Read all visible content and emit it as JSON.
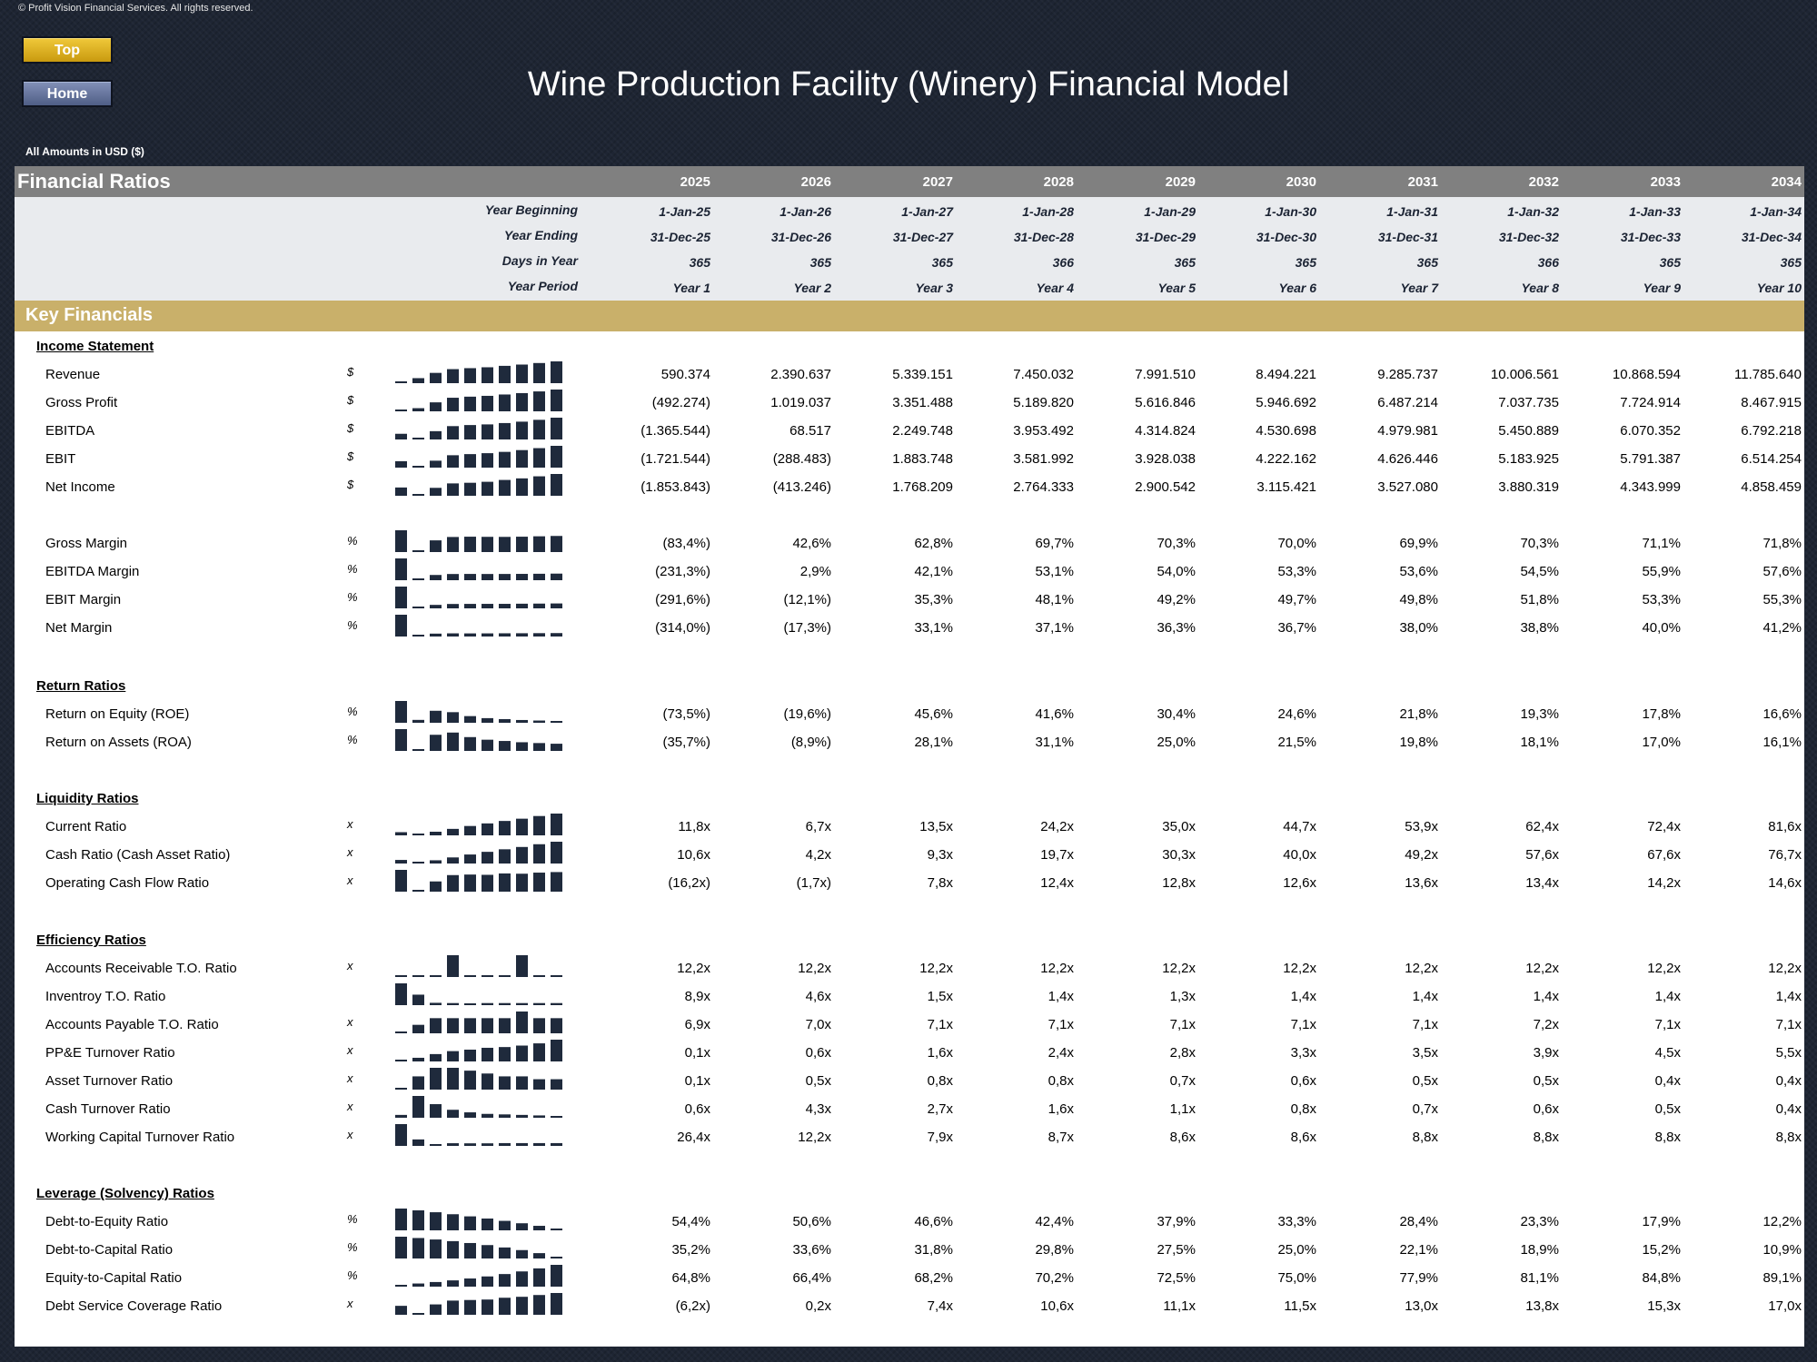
{
  "copyright": "© Profit Vision Financial Services. All rights reserved.",
  "buttons": {
    "top": "Top",
    "home": "Home"
  },
  "title": "Wine Production Facility (Winery) Financial Model",
  "amounts_note": "All Amounts in  USD ($)",
  "sheet_title": "Financial Ratios",
  "years": [
    "2025",
    "2026",
    "2027",
    "2028",
    "2029",
    "2030",
    "2031",
    "2032",
    "2033",
    "2034"
  ],
  "meta": [
    {
      "label": "Year Beginning",
      "values": [
        "1-Jan-25",
        "1-Jan-26",
        "1-Jan-27",
        "1-Jan-28",
        "1-Jan-29",
        "1-Jan-30",
        "1-Jan-31",
        "1-Jan-32",
        "1-Jan-33",
        "1-Jan-34"
      ]
    },
    {
      "label": "Year Ending",
      "values": [
        "31-Dec-25",
        "31-Dec-26",
        "31-Dec-27",
        "31-Dec-28",
        "31-Dec-29",
        "31-Dec-30",
        "31-Dec-31",
        "31-Dec-32",
        "31-Dec-33",
        "31-Dec-34"
      ]
    },
    {
      "label": "Days in Year",
      "values": [
        "365",
        "365",
        "365",
        "366",
        "365",
        "365",
        "365",
        "366",
        "365",
        "365"
      ]
    },
    {
      "label": "Year Period",
      "values": [
        "Year 1",
        "Year 2",
        "Year 3",
        "Year 4",
        "Year 5",
        "Year 6",
        "Year 7",
        "Year 8",
        "Year 9",
        "Year 10"
      ]
    }
  ],
  "key_financials_title": "Key Financials",
  "sections": [
    {
      "title": "Income Statement",
      "rows": [
        {
          "label": "Revenue",
          "unit": "$",
          "values": [
            "590.374",
            "2.390.637",
            "5.339.151",
            "7.450.032",
            "7.991.510",
            "8.494.221",
            "9.285.737",
            "10.006.561",
            "10.868.594",
            "11.785.640"
          ],
          "spark": [
            0.59,
            2.39,
            5.34,
            7.45,
            7.99,
            8.49,
            9.29,
            10.01,
            10.87,
            11.79
          ]
        },
        {
          "label": "Gross Profit",
          "unit": "$",
          "values": [
            "(492.274)",
            "1.019.037",
            "3.351.488",
            "5.189.820",
            "5.616.846",
            "5.946.692",
            "6.487.214",
            "7.037.735",
            "7.724.914",
            "8.467.915"
          ],
          "spark": [
            -0.49,
            1.02,
            3.35,
            5.19,
            5.62,
            5.95,
            6.49,
            7.04,
            7.72,
            8.47
          ]
        },
        {
          "label": "EBITDA",
          "unit": "$",
          "values": [
            "(1.365.544)",
            "68.517",
            "2.249.748",
            "3.953.492",
            "4.314.824",
            "4.530.698",
            "4.979.981",
            "5.450.889",
            "6.070.352",
            "6.792.218"
          ],
          "spark": [
            -1.37,
            0.07,
            2.25,
            3.95,
            4.31,
            4.53,
            4.98,
            5.45,
            6.07,
            6.79
          ]
        },
        {
          "label": "EBIT",
          "unit": "$",
          "values": [
            "(1.721.544)",
            "(288.483)",
            "1.883.748",
            "3.581.992",
            "3.928.038",
            "4.222.162",
            "4.626.446",
            "5.183.925",
            "5.791.387",
            "6.514.254"
          ],
          "spark": [
            -1.72,
            -0.29,
            1.88,
            3.58,
            3.93,
            4.22,
            4.63,
            5.18,
            5.79,
            6.51
          ]
        },
        {
          "label": "Net Income",
          "unit": "$",
          "values": [
            "(1.853.843)",
            "(413.246)",
            "1.768.209",
            "2.764.333",
            "2.900.542",
            "3.115.421",
            "3.527.080",
            "3.880.319",
            "4.343.999",
            "4.858.459"
          ],
          "spark": [
            -1.85,
            -0.41,
            1.77,
            2.76,
            2.9,
            3.12,
            3.53,
            3.88,
            4.34,
            4.86
          ]
        },
        {
          "label": "",
          "unit": "",
          "values": [],
          "spark": []
        },
        {
          "label": "Gross Margin",
          "unit": "%",
          "values": [
            "(83,4%)",
            "42,6%",
            "62,8%",
            "69,7%",
            "70,3%",
            "70,0%",
            "69,9%",
            "70,3%",
            "71,1%",
            "71,8%"
          ],
          "spark": [
            -83.4,
            42.6,
            62.8,
            69.7,
            70.3,
            70.0,
            69.9,
            70.3,
            71.1,
            71.8
          ]
        },
        {
          "label": "EBITDA Margin",
          "unit": "%",
          "values": [
            "(231,3%)",
            "2,9%",
            "42,1%",
            "53,1%",
            "54,0%",
            "53,3%",
            "53,6%",
            "54,5%",
            "55,9%",
            "57,6%"
          ],
          "spark": [
            -231.3,
            2.9,
            42.1,
            53.1,
            54.0,
            53.3,
            53.6,
            54.5,
            55.9,
            57.6
          ]
        },
        {
          "label": "EBIT Margin",
          "unit": "%",
          "values": [
            "(291,6%)",
            "(12,1%)",
            "35,3%",
            "48,1%",
            "49,2%",
            "49,7%",
            "49,8%",
            "51,8%",
            "53,3%",
            "55,3%"
          ],
          "spark": [
            -291.6,
            -12.1,
            35.3,
            48.1,
            49.2,
            49.7,
            49.8,
            51.8,
            53.3,
            55.3
          ]
        },
        {
          "label": "Net Margin",
          "unit": "%",
          "values": [
            "(314,0%)",
            "(17,3%)",
            "33,1%",
            "37,1%",
            "36,3%",
            "36,7%",
            "38,0%",
            "38,8%",
            "40,0%",
            "41,2%"
          ],
          "spark": [
            -314.0,
            -17.3,
            33.1,
            37.1,
            36.3,
            36.7,
            38.0,
            38.8,
            40.0,
            41.2
          ]
        }
      ]
    },
    {
      "title": "Return Ratios",
      "rows": [
        {
          "label": "Return on Equity (ROE)",
          "unit": "%",
          "values": [
            "(73,5%)",
            "(19,6%)",
            "45,6%",
            "41,6%",
            "30,4%",
            "24,6%",
            "21,8%",
            "19,3%",
            "17,8%",
            "16,6%"
          ],
          "spark": [
            -73.5,
            -19.6,
            45.6,
            41.6,
            30.4,
            24.6,
            21.8,
            19.3,
            17.8,
            16.6
          ]
        },
        {
          "label": "Return on Assets (ROA)",
          "unit": "%",
          "values": [
            "(35,7%)",
            "(8,9%)",
            "28,1%",
            "31,1%",
            "25,0%",
            "21,5%",
            "19,8%",
            "18,1%",
            "17,0%",
            "16,1%"
          ],
          "spark": [
            -35.7,
            -8.9,
            28.1,
            31.1,
            25.0,
            21.5,
            19.8,
            18.1,
            17.0,
            16.1
          ]
        }
      ]
    },
    {
      "title": "Liquidity Ratios",
      "rows": [
        {
          "label": "Current Ratio",
          "unit": "x",
          "values": [
            "11,8x",
            "6,7x",
            "13,5x",
            "24,2x",
            "35,0x",
            "44,7x",
            "53,9x",
            "62,4x",
            "72,4x",
            "81,6x"
          ],
          "spark": [
            11.8,
            6.7,
            13.5,
            24.2,
            35.0,
            44.7,
            53.9,
            62.4,
            72.4,
            81.6
          ]
        },
        {
          "label": "Cash Ratio (Cash Asset Ratio)",
          "unit": "x",
          "values": [
            "10,6x",
            "4,2x",
            "9,3x",
            "19,7x",
            "30,3x",
            "40,0x",
            "49,2x",
            "57,6x",
            "67,6x",
            "76,7x"
          ],
          "spark": [
            10.6,
            4.2,
            9.3,
            19.7,
            30.3,
            40.0,
            49.2,
            57.6,
            67.6,
            76.7
          ]
        },
        {
          "label": "Operating Cash Flow Ratio",
          "unit": "x",
          "values": [
            "(16,2x)",
            "(1,7x)",
            "7,8x",
            "12,4x",
            "12,8x",
            "12,6x",
            "13,6x",
            "13,4x",
            "14,2x",
            "14,6x"
          ],
          "spark": [
            -16.2,
            -1.7,
            7.8,
            12.4,
            12.8,
            12.6,
            13.6,
            13.4,
            14.2,
            14.6
          ]
        }
      ]
    },
    {
      "title": "Efficiency Ratios",
      "rows": [
        {
          "label": "Accounts Receivable T.O. Ratio",
          "unit": "x",
          "values": [
            "12,2x",
            "12,2x",
            "12,2x",
            "12,2x",
            "12,2x",
            "12,2x",
            "12,2x",
            "12,2x",
            "12,2x",
            "12,2x"
          ],
          "spark": [
            12.2,
            12.2,
            12.2,
            12.25,
            12.2,
            12.2,
            12.2,
            12.25,
            12.2,
            12.2
          ]
        },
        {
          "label": "Inventroy T.O. Ratio",
          "unit": "",
          "values": [
            "8,9x",
            "4,6x",
            "1,5x",
            "1,4x",
            "1,3x",
            "1,4x",
            "1,4x",
            "1,4x",
            "1,4x",
            "1,4x"
          ],
          "spark": [
            8.9,
            4.6,
            1.5,
            1.4,
            1.3,
            1.4,
            1.4,
            1.4,
            1.4,
            1.4
          ]
        },
        {
          "label": "Accounts Payable T.O. Ratio",
          "unit": "x",
          "values": [
            "6,9x",
            "7,0x",
            "7,1x",
            "7,1x",
            "7,1x",
            "7,1x",
            "7,1x",
            "7,2x",
            "7,1x",
            "7,1x"
          ],
          "spark": [
            6.9,
            7.0,
            7.1,
            7.1,
            7.1,
            7.1,
            7.1,
            7.2,
            7.1,
            7.1
          ]
        },
        {
          "label": "PP&E Turnover Ratio",
          "unit": "x",
          "values": [
            "0,1x",
            "0,6x",
            "1,6x",
            "2,4x",
            "2,8x",
            "3,3x",
            "3,5x",
            "3,9x",
            "4,5x",
            "5,5x"
          ],
          "spark": [
            0.1,
            0.6,
            1.6,
            2.4,
            2.8,
            3.3,
            3.5,
            3.9,
            4.5,
            5.5
          ]
        },
        {
          "label": "Asset Turnover Ratio",
          "unit": "x",
          "values": [
            "0,1x",
            "0,5x",
            "0,8x",
            "0,8x",
            "0,7x",
            "0,6x",
            "0,5x",
            "0,5x",
            "0,4x",
            "0,4x"
          ],
          "spark": [
            0.1,
            0.5,
            0.8,
            0.8,
            0.7,
            0.6,
            0.5,
            0.5,
            0.4,
            0.4
          ]
        },
        {
          "label": "Cash Turnover Ratio",
          "unit": "x",
          "values": [
            "0,6x",
            "4,3x",
            "2,7x",
            "1,6x",
            "1,1x",
            "0,8x",
            "0,7x",
            "0,6x",
            "0,5x",
            "0,4x"
          ],
          "spark": [
            0.6,
            4.3,
            2.7,
            1.6,
            1.1,
            0.8,
            0.7,
            0.6,
            0.5,
            0.4
          ]
        },
        {
          "label": "Working Capital Turnover Ratio",
          "unit": "x",
          "values": [
            "26,4x",
            "12,2x",
            "7,9x",
            "8,7x",
            "8,6x",
            "8,6x",
            "8,8x",
            "8,8x",
            "8,8x",
            "8,8x"
          ],
          "spark": [
            26.4,
            12.2,
            7.9,
            8.7,
            8.6,
            8.6,
            8.8,
            8.8,
            8.8,
            8.8
          ]
        }
      ]
    },
    {
      "title": "Leverage (Solvency) Ratios",
      "rows": [
        {
          "label": "Debt-to-Equity Ratio",
          "unit": "%",
          "values": [
            "54,4%",
            "50,6%",
            "46,6%",
            "42,4%",
            "37,9%",
            "33,3%",
            "28,4%",
            "23,3%",
            "17,9%",
            "12,2%"
          ],
          "spark": [
            54.4,
            50.6,
            46.6,
            42.4,
            37.9,
            33.3,
            28.4,
            23.3,
            17.9,
            12.2
          ]
        },
        {
          "label": "Debt-to-Capital Ratio",
          "unit": "%",
          "values": [
            "35,2%",
            "33,6%",
            "31,8%",
            "29,8%",
            "27,5%",
            "25,0%",
            "22,1%",
            "18,9%",
            "15,2%",
            "10,9%"
          ],
          "spark": [
            35.2,
            33.6,
            31.8,
            29.8,
            27.5,
            25.0,
            22.1,
            18.9,
            15.2,
            10.9
          ]
        },
        {
          "label": "Equity-to-Capital Ratio",
          "unit": "%",
          "values": [
            "64,8%",
            "66,4%",
            "68,2%",
            "70,2%",
            "72,5%",
            "75,0%",
            "77,9%",
            "81,1%",
            "84,8%",
            "89,1%"
          ],
          "spark": [
            64.8,
            66.4,
            68.2,
            70.2,
            72.5,
            75.0,
            77.9,
            81.1,
            84.8,
            89.1
          ]
        },
        {
          "label": "Debt Service Coverage Ratio",
          "unit": "x",
          "values": [
            "(6,2x)",
            "0,2x",
            "7,4x",
            "10,6x",
            "11,1x",
            "11,5x",
            "13,0x",
            "13,8x",
            "15,3x",
            "17,0x"
          ],
          "spark": [
            -6.2,
            0.2,
            7.4,
            10.6,
            11.1,
            11.5,
            13.0,
            13.8,
            15.3,
            17.0
          ]
        }
      ]
    }
  ]
}
